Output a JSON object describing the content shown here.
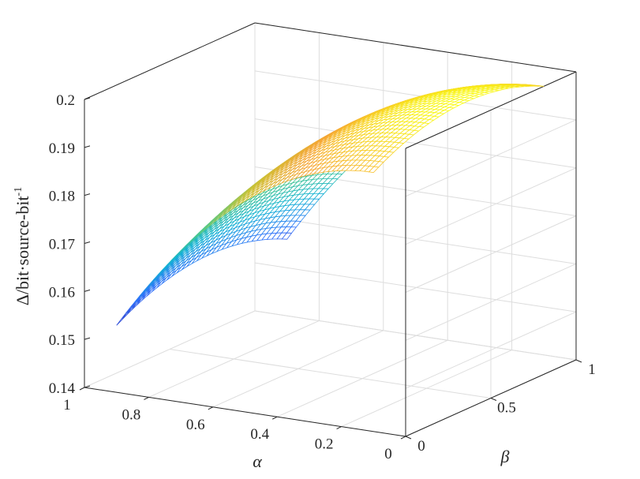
{
  "chart_data": {
    "type": "surface",
    "title": "",
    "xlabel": "α",
    "ylabel": "β",
    "zlabel_parts": [
      "Δ/bit·source-bit",
      "-1"
    ],
    "alpha_ticks": [
      "1",
      "0.8",
      "0.6",
      "0.4",
      "0.2",
      "0"
    ],
    "beta_ticks": [
      "0",
      "0.5",
      "1"
    ],
    "z_ticks": [
      "0.14",
      "0.15",
      "0.16",
      "0.17",
      "0.18",
      "0.19",
      "0.2"
    ],
    "xlim": [
      0,
      1
    ],
    "ylim": [
      0,
      1
    ],
    "zlim": [
      0.14,
      0.2
    ],
    "grid": true,
    "colormap": [
      "#3e26a8",
      "#2e6ffa",
      "#12b2d5",
      "#4dc98a",
      "#c9c234",
      "#f6a534",
      "#f9fb15"
    ],
    "surface": {
      "alpha_range": [
        0.1,
        0.9
      ],
      "beta_range": [
        0,
        1
      ],
      "z_model": "z = 0.2 - 0.0625 * (alpha - 0.1)^2 - 0.02 * (beta - 0.55)^2",
      "samples": {
        "corner_alpha0.9_beta0": 0.1539,
        "corner_alpha0.9_beta1": 0.1559,
        "corner_alpha0.1_beta0": 0.194,
        "corner_alpha0.1_beta1": 0.196,
        "peak": 0.2
      }
    }
  }
}
